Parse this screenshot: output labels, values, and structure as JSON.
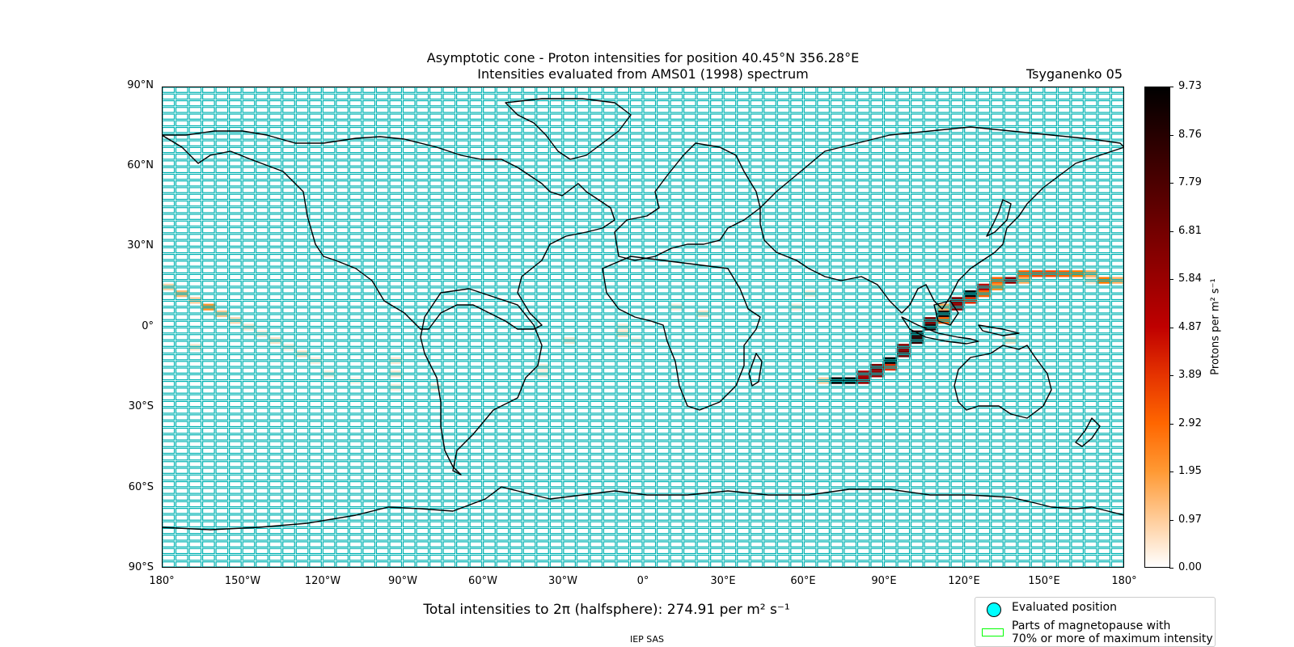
{
  "title_line1": "Asymptotic cone - Proton intensities for position 40.45°N 356.28°E",
  "title_line2": "Intensities evaluated from AMS01 (1998) spectrum",
  "model": "Tsyganenko 05",
  "lat_ticks": [
    "90°N",
    "60°N",
    "30°N",
    "0°",
    "30°S",
    "60°S",
    "90°S"
  ],
  "lon_ticks": [
    "180°",
    "150°W",
    "120°W",
    "90°W",
    "60°W",
    "30°W",
    "0°",
    "30°E",
    "60°E",
    "90°E",
    "120°E",
    "150°E",
    "180°"
  ],
  "colorbar": {
    "label": "Protons per m² s⁻¹",
    "ticks": [
      "9.73",
      "8.76",
      "7.79",
      "6.81",
      "5.84",
      "4.87",
      "3.89",
      "2.92",
      "1.95",
      "0.97",
      "0.00"
    ],
    "min": 0.0,
    "max": 9.73,
    "colormap": "gist_heat_r"
  },
  "total_text": "Total intensities to 2π (halfsphere): 274.91 per m² s⁻¹",
  "credit": "IEP SAS",
  "legend": {
    "item1": "Evaluated position",
    "item2_line1": "Parts of magnetopause with",
    "item2_line2": "70% or more of maximum intensity"
  },
  "colors": {
    "grid": "#00b3b3",
    "coast": "#000000",
    "evaluated_marker": "#00ffff",
    "magnetopause": "#00ff00"
  },
  "cell_size_deg": {
    "lon": 5,
    "lat": 2.5
  },
  "chart_data": {
    "type": "heatmap",
    "xlabel": "",
    "ylabel": "",
    "xlim": [
      -180,
      180
    ],
    "ylim": [
      -90,
      90
    ],
    "cells": [
      {
        "lon": -177.5,
        "lat": 15,
        "value": 0.8
      },
      {
        "lon": -172.5,
        "lat": 12.5,
        "value": 1.3
      },
      {
        "lon": -167.5,
        "lat": 10,
        "value": 0.9
      },
      {
        "lon": -162.5,
        "lat": 7.5,
        "value": 2.0
      },
      {
        "lon": -157.5,
        "lat": 5,
        "value": 1.0
      },
      {
        "lon": -152.5,
        "lat": 2.5,
        "value": 0.7
      },
      {
        "lon": -147.5,
        "lat": 0,
        "value": 0.4
      },
      {
        "lon": -142.5,
        "lat": -2.5,
        "value": 0.3
      },
      {
        "lon": -137.5,
        "lat": -5,
        "value": 0.5
      },
      {
        "lon": -132.5,
        "lat": -7.5,
        "value": 0.3
      },
      {
        "lon": -127.5,
        "lat": -10,
        "value": 0.5
      },
      {
        "lon": -122.5,
        "lat": -12.5,
        "value": 0.3
      },
      {
        "lon": -117.5,
        "lat": -17.5,
        "value": 0.3
      },
      {
        "lon": -167.5,
        "lat": -7.5,
        "value": 0.4
      },
      {
        "lon": -107.5,
        "lat": -20,
        "value": 0.2
      },
      {
        "lon": -92.5,
        "lat": -12.5,
        "value": 0.4
      },
      {
        "lon": -92.5,
        "lat": -17.5,
        "value": 0.4
      },
      {
        "lon": -92.5,
        "lat": -22.5,
        "value": 0.3
      },
      {
        "lon": -77.5,
        "lat": -22.5,
        "value": 0.3
      },
      {
        "lon": -27.5,
        "lat": -5,
        "value": 0.4
      },
      {
        "lon": -37.5,
        "lat": -15,
        "value": 0.3
      },
      {
        "lon": -37.5,
        "lat": -17.5,
        "value": 0.3
      },
      {
        "lon": -7.5,
        "lat": -2.5,
        "value": 0.5
      },
      {
        "lon": -7.5,
        "lat": 0,
        "value": 0.3
      },
      {
        "lon": -2.5,
        "lat": -5,
        "value": 0.2
      },
      {
        "lon": 12.5,
        "lat": 7.5,
        "value": 0.3
      },
      {
        "lon": 22.5,
        "lat": 5,
        "value": 0.5
      },
      {
        "lon": 57.5,
        "lat": 7.5,
        "value": 0.3
      },
      {
        "lon": 62.5,
        "lat": 12.5,
        "value": 0.3
      },
      {
        "lon": 67.5,
        "lat": -20,
        "value": 0.8
      },
      {
        "lon": 72.5,
        "lat": -20,
        "value": 9.73
      },
      {
        "lon": 77.5,
        "lat": -20,
        "value": 9.5
      },
      {
        "lon": 82.5,
        "lat": -20,
        "value": 6.0
      },
      {
        "lon": 82.5,
        "lat": -17.5,
        "value": 5.5
      },
      {
        "lon": 87.5,
        "lat": -17.5,
        "value": 6.0
      },
      {
        "lon": 87.5,
        "lat": -15,
        "value": 6.5
      },
      {
        "lon": 92.5,
        "lat": -15,
        "value": 4.0
      },
      {
        "lon": 92.5,
        "lat": -12.5,
        "value": 9.5
      },
      {
        "lon": 97.5,
        "lat": -10,
        "value": 6.8
      },
      {
        "lon": 97.5,
        "lat": -7.5,
        "value": 6.2
      },
      {
        "lon": 102.5,
        "lat": -5,
        "value": 8.5
      },
      {
        "lon": 102.5,
        "lat": -2.5,
        "value": 9.0
      },
      {
        "lon": 107.5,
        "lat": 0,
        "value": 8.8
      },
      {
        "lon": 107.5,
        "lat": 2.5,
        "value": 6.5
      },
      {
        "lon": 112.5,
        "lat": 2.5,
        "value": 3.0
      },
      {
        "lon": 112.5,
        "lat": 5,
        "value": 9.0
      },
      {
        "lon": 112.5,
        "lat": 7.5,
        "value": 1.5
      },
      {
        "lon": 117.5,
        "lat": 7.5,
        "value": 6.0
      },
      {
        "lon": 117.5,
        "lat": 10,
        "value": 6.5
      },
      {
        "lon": 122.5,
        "lat": 10,
        "value": 4.0
      },
      {
        "lon": 122.5,
        "lat": 12.5,
        "value": 9.5
      },
      {
        "lon": 127.5,
        "lat": 12.5,
        "value": 3.0
      },
      {
        "lon": 127.5,
        "lat": 15,
        "value": 5.0
      },
      {
        "lon": 132.5,
        "lat": 15,
        "value": 2.0
      },
      {
        "lon": 132.5,
        "lat": 17.5,
        "value": 3.0
      },
      {
        "lon": 137.5,
        "lat": 17.5,
        "value": 6.0
      },
      {
        "lon": 142.5,
        "lat": 17.5,
        "value": 1.5
      },
      {
        "lon": 142.5,
        "lat": 20,
        "value": 3.0
      },
      {
        "lon": 147.5,
        "lat": 20,
        "value": 3.5
      },
      {
        "lon": 152.5,
        "lat": 20,
        "value": 3.5
      },
      {
        "lon": 157.5,
        "lat": 20,
        "value": 3.0
      },
      {
        "lon": 162.5,
        "lat": 20,
        "value": 2.5
      },
      {
        "lon": 167.5,
        "lat": 20,
        "value": 1.5
      },
      {
        "lon": 167.5,
        "lat": 17.5,
        "value": 0.5
      },
      {
        "lon": 172.5,
        "lat": 17.5,
        "value": 2.5
      },
      {
        "lon": 177.5,
        "lat": 17.5,
        "value": 1.5
      },
      {
        "lon": 137.5,
        "lat": -5,
        "value": 0.5
      }
    ]
  }
}
